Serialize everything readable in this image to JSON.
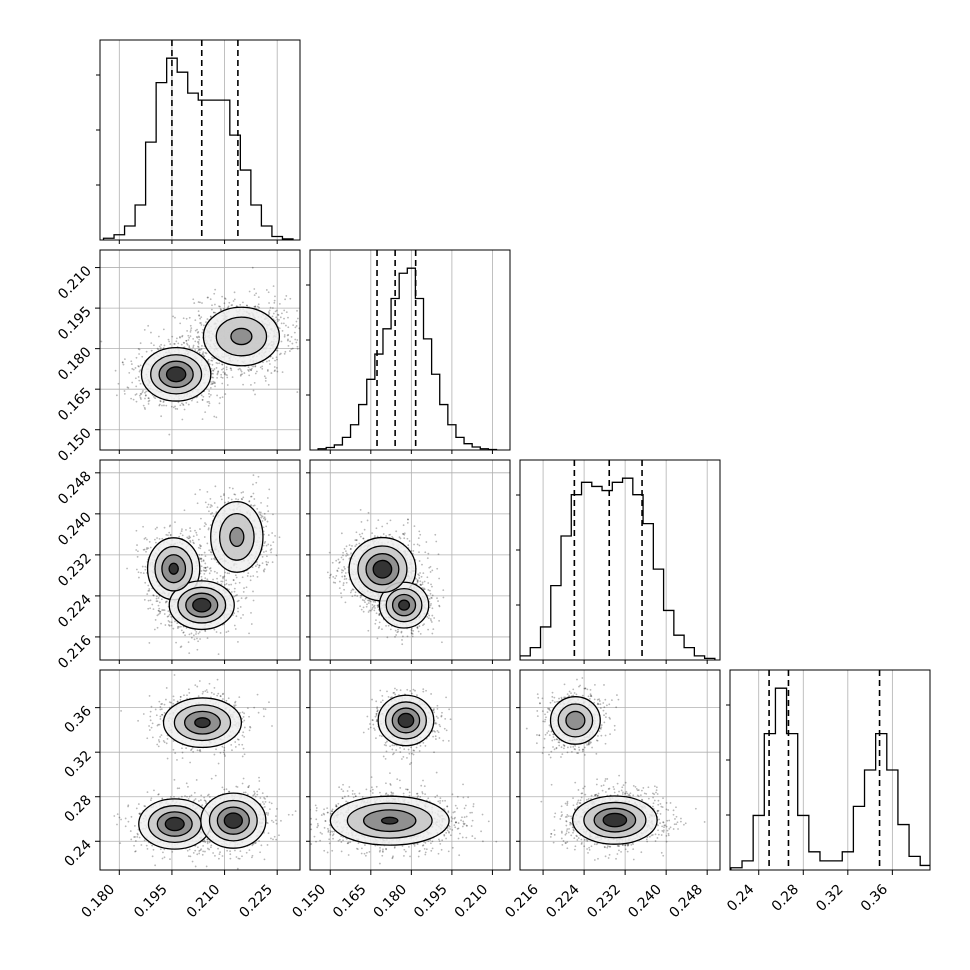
{
  "chart_data": {
    "type": "scatter",
    "subtype": "corner-plot",
    "parameters": 4,
    "grid": true,
    "colors": {
      "points": "#000000",
      "line": "#000000",
      "grid": "#b0b0b0"
    },
    "x_ticks": [
      [
        "0.180",
        "0.195",
        "0.210",
        "0.225"
      ],
      [
        "0.150",
        "0.165",
        "0.180",
        "0.195",
        "0.210"
      ],
      [
        "0.216",
        "0.224",
        "0.232",
        "0.240",
        "0.248"
      ],
      [
        "0.24",
        "0.28",
        "0.32",
        "0.36"
      ]
    ],
    "y_ticks": [
      [],
      [
        "0.150",
        "0.165",
        "0.180",
        "0.195",
        "0.210"
      ],
      [
        "0.216",
        "0.224",
        "0.232",
        "0.240",
        "0.248"
      ],
      [
        "0.24",
        "0.28",
        "0.32",
        "0.36"
      ]
    ],
    "ranges": [
      [
        0.1745,
        0.2315
      ],
      [
        0.1425,
        0.2165
      ],
      [
        0.2115,
        0.2505
      ],
      [
        0.2142,
        0.3938
      ]
    ],
    "histograms": [
      {
        "param": 1,
        "x": [
          0.177,
          0.18,
          0.183,
          0.186,
          0.189,
          0.192,
          0.195,
          0.198,
          0.201,
          0.204,
          0.207,
          0.21,
          0.213,
          0.216,
          0.219,
          0.222,
          0.225,
          0.228
        ],
        "values": [
          0.5,
          1.5,
          4,
          10,
          28,
          45,
          52,
          48,
          42,
          40,
          40,
          40,
          30,
          20,
          10,
          4,
          1,
          0.3
        ],
        "quantiles": [
          0.195,
          0.2035,
          0.2138
        ]
      },
      {
        "param": 2,
        "x": [
          0.147,
          0.15,
          0.153,
          0.156,
          0.159,
          0.162,
          0.165,
          0.168,
          0.171,
          0.174,
          0.177,
          0.18,
          0.183,
          0.186,
          0.189,
          0.192,
          0.195,
          0.198,
          0.201,
          0.204,
          0.207,
          0.21
        ],
        "values": [
          0.5,
          1,
          2,
          5,
          10,
          18,
          28,
          38,
          48,
          60,
          70,
          72,
          60,
          44,
          30,
          18,
          10,
          5,
          2.5,
          1.2,
          0.5,
          0.2
        ],
        "quantiles": [
          0.1673,
          0.174,
          0.1816
        ]
      },
      {
        "param": 3,
        "x": [
          0.2125,
          0.2145,
          0.2165,
          0.2185,
          0.2205,
          0.2225,
          0.2245,
          0.2265,
          0.2285,
          0.2305,
          0.2325,
          0.2345,
          0.2365,
          0.2385,
          0.2405,
          0.2425,
          0.2445,
          0.2465,
          0.2485
        ],
        "values": [
          1,
          3,
          8,
          18,
          30,
          40,
          43,
          42,
          41,
          43,
          44,
          40,
          33,
          22,
          12,
          6,
          3,
          1,
          0.4
        ],
        "quantiles": [
          0.2221,
          0.2289,
          0.2353
        ]
      },
      {
        "param": 4,
        "x": [
          0.22,
          0.23,
          0.24,
          0.25,
          0.26,
          0.27,
          0.28,
          0.29,
          0.3,
          0.31,
          0.32,
          0.33,
          0.34,
          0.35,
          0.36,
          0.37,
          0.38,
          0.39
        ],
        "values": [
          0.5,
          2,
          12,
          30,
          40,
          30,
          12,
          4,
          2,
          2,
          4,
          14,
          22,
          30,
          22,
          10,
          3,
          1
        ],
        "quantiles": [
          0.2493,
          0.2667,
          0.3485
        ]
      }
    ],
    "scatter_2d": [
      {
        "x_param": 1,
        "y_param": 2,
        "modes": [
          {
            "cx": 0.1962,
            "cy": 0.1705,
            "sx": 0.0048,
            "sy": 0.0048,
            "w": 0.5
          },
          {
            "cx": 0.2148,
            "cy": 0.1845,
            "sx": 0.0058,
            "sy": 0.0058,
            "w": 0.5
          }
        ]
      },
      {
        "x_param": 1,
        "y_param": 3,
        "modes": [
          {
            "cx": 0.1955,
            "cy": 0.2293,
            "sx": 0.0037,
            "sy": 0.003,
            "w": 0.33
          },
          {
            "cx": 0.2035,
            "cy": 0.2222,
            "sx": 0.0045,
            "sy": 0.0023,
            "w": 0.34
          },
          {
            "cx": 0.2135,
            "cy": 0.2355,
            "sx": 0.004,
            "sy": 0.0037,
            "w": 0.33
          }
        ]
      },
      {
        "x_param": 2,
        "y_param": 3,
        "modes": [
          {
            "cx": 0.1693,
            "cy": 0.2292,
            "sx": 0.006,
            "sy": 0.003,
            "w": 0.66
          },
          {
            "cx": 0.1773,
            "cy": 0.2222,
            "sx": 0.0045,
            "sy": 0.0022,
            "w": 0.34
          }
        ]
      },
      {
        "x_param": 1,
        "y_param": 4,
        "modes": [
          {
            "cx": 0.2037,
            "cy": 0.3465,
            "sx": 0.0055,
            "sy": 0.011,
            "w": 0.34
          },
          {
            "cx": 0.1958,
            "cy": 0.2555,
            "sx": 0.005,
            "sy": 0.011,
            "w": 0.33
          },
          {
            "cx": 0.2125,
            "cy": 0.2585,
            "sx": 0.0045,
            "sy": 0.012,
            "w": 0.33
          }
        ]
      },
      {
        "x_param": 2,
        "y_param": 4,
        "modes": [
          {
            "cx": 0.178,
            "cy": 0.3485,
            "sx": 0.005,
            "sy": 0.011,
            "w": 0.34
          },
          {
            "cx": 0.172,
            "cy": 0.2585,
            "sx": 0.011,
            "sy": 0.011,
            "w": 0.66
          }
        ]
      },
      {
        "x_param": 3,
        "y_param": 4,
        "modes": [
          {
            "cx": 0.2223,
            "cy": 0.3485,
            "sx": 0.0025,
            "sy": 0.011,
            "w": 0.34
          },
          {
            "cx": 0.23,
            "cy": 0.259,
            "sx": 0.004,
            "sy": 0.0105,
            "w": 0.66
          }
        ]
      }
    ]
  }
}
